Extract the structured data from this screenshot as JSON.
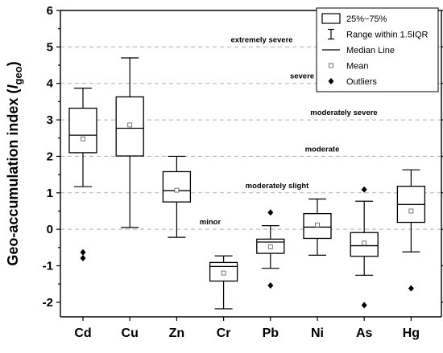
{
  "chart_data": {
    "type": "box",
    "ylabel_prefix": "Geo-accumulation index (",
    "ylabel_symbol": "I",
    "ylabel_sub": "geo",
    "ylabel_suffix": ")",
    "ylim": [
      -2.4,
      6
    ],
    "yticks": [
      -2,
      -1,
      0,
      1,
      2,
      3,
      4,
      5,
      6
    ],
    "categories": [
      "Cd",
      "Cu",
      "Zn",
      "Cr",
      "Pb",
      "Ni",
      "As",
      "Hg"
    ],
    "boxes": [
      {
        "category": "Cd",
        "whisker_low": 1.17,
        "q1": 2.1,
        "median": 2.58,
        "q3": 3.32,
        "whisker_high": 3.87,
        "mean": 2.48,
        "outliers": [
          -0.63,
          -0.79
        ]
      },
      {
        "category": "Cu",
        "whisker_low": 0.05,
        "q1": 2.01,
        "median": 2.77,
        "q3": 3.63,
        "whisker_high": 4.7,
        "mean": 2.86,
        "outliers": []
      },
      {
        "category": "Zn",
        "whisker_low": -0.22,
        "q1": 0.75,
        "median": 1.06,
        "q3": 1.58,
        "whisker_high": 2.0,
        "mean": 1.07,
        "outliers": []
      },
      {
        "category": "Cr",
        "whisker_low": -2.18,
        "q1": -1.42,
        "median": -1.02,
        "q3": -0.91,
        "whisker_high": -0.73,
        "mean": -1.2,
        "outliers": []
      },
      {
        "category": "Pb",
        "whisker_low": -1.07,
        "q1": -0.66,
        "median": -0.35,
        "q3": -0.27,
        "whisker_high": 0.1,
        "mean": -0.48,
        "outliers": [
          0.46,
          -1.54
        ]
      },
      {
        "category": "Ni",
        "whisker_low": -0.71,
        "q1": -0.25,
        "median": 0.06,
        "q3": 0.43,
        "whisker_high": 0.83,
        "mean": 0.12,
        "outliers": []
      },
      {
        "category": "As",
        "whisker_low": -1.26,
        "q1": -0.74,
        "median": -0.45,
        "q3": -0.09,
        "whisker_high": 0.77,
        "mean": -0.38,
        "outliers": [
          1.09,
          -2.08
        ]
      },
      {
        "category": "Hg",
        "whisker_low": -0.62,
        "q1": 0.19,
        "median": 0.68,
        "q3": 1.18,
        "whisker_high": 1.63,
        "mean": 0.5,
        "outliers": [
          -1.62
        ]
      }
    ],
    "reference_lines": [
      {
        "y": 5,
        "label": "extremely severe"
      },
      {
        "y": 4,
        "label": "severe"
      },
      {
        "y": 3,
        "label": "moderately severe"
      },
      {
        "y": 2,
        "label": "moderate"
      },
      {
        "y": 1,
        "label": "moderately slight"
      },
      {
        "y": 0,
        "label": "minor"
      }
    ],
    "legend": {
      "position": "top-right",
      "items": [
        {
          "symbol": "box",
          "label": "25%~75%"
        },
        {
          "symbol": "range",
          "label": "Range within 1.5IQR"
        },
        {
          "symbol": "line",
          "label": "Median Line"
        },
        {
          "symbol": "square",
          "label": "Mean"
        },
        {
          "symbol": "diamond",
          "label": "Outliers"
        }
      ]
    },
    "grid": false
  }
}
